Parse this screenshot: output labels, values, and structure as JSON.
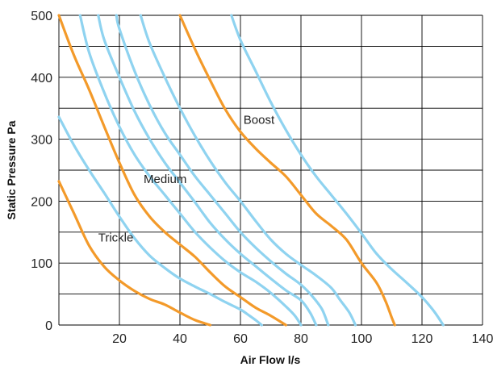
{
  "chart_data": {
    "type": "line",
    "xlabel": "Air Flow l/s",
    "ylabel": "Static Pressure Pa",
    "xlim": [
      0,
      140
    ],
    "ylim": [
      0,
      500
    ],
    "x_ticks": [
      "20",
      "40",
      "60",
      "80",
      "100",
      "120",
      "140"
    ],
    "y_ticks": [
      "0",
      "100",
      "200",
      "300",
      "400",
      "500"
    ],
    "grid": true,
    "colors": {
      "setting_curve": "#f39a2a",
      "fan_curve": "#8fd3f0"
    },
    "annotations": [
      {
        "text": "Boost",
        "x": 61,
        "y": 325
      },
      {
        "text": "Medium",
        "x": 28,
        "y": 229
      },
      {
        "text": "Trickle",
        "x": 13,
        "y": 135
      }
    ],
    "series": [
      {
        "group": "setting",
        "points": [
          [
            0,
            232
          ],
          [
            5,
            180
          ],
          [
            10,
            128
          ],
          [
            15,
            94
          ],
          [
            20,
            72
          ],
          [
            25,
            55
          ],
          [
            30,
            42
          ],
          [
            35,
            33
          ],
          [
            40,
            20
          ],
          [
            45,
            8
          ],
          [
            50,
            0
          ]
        ]
      },
      {
        "group": "setting",
        "points": [
          [
            0,
            500
          ],
          [
            5,
            435
          ],
          [
            10,
            380
          ],
          [
            15,
            320
          ],
          [
            20,
            262
          ],
          [
            25,
            210
          ],
          [
            30,
            175
          ],
          [
            35,
            150
          ],
          [
            40,
            130
          ],
          [
            45,
            110
          ],
          [
            50,
            85
          ],
          [
            55,
            62
          ],
          [
            60,
            45
          ],
          [
            65,
            28
          ],
          [
            70,
            15
          ],
          [
            75,
            0
          ]
        ]
      },
      {
        "group": "setting",
        "points": [
          [
            40,
            500
          ],
          [
            45,
            445
          ],
          [
            50,
            395
          ],
          [
            55,
            348
          ],
          [
            60,
            312
          ],
          [
            65,
            285
          ],
          [
            70,
            262
          ],
          [
            75,
            240
          ],
          [
            80,
            210
          ],
          [
            85,
            180
          ],
          [
            90,
            160
          ],
          [
            95,
            138
          ],
          [
            100,
            100
          ],
          [
            105,
            68
          ],
          [
            108,
            38
          ],
          [
            110,
            12
          ],
          [
            111,
            0
          ]
        ]
      },
      {
        "group": "fan",
        "points": [
          [
            0,
            336
          ],
          [
            5,
            290
          ],
          [
            10,
            250
          ],
          [
            15,
            213
          ],
          [
            20,
            175
          ],
          [
            25,
            140
          ],
          [
            30,
            112
          ],
          [
            35,
            92
          ],
          [
            40,
            75
          ],
          [
            45,
            62
          ],
          [
            50,
            50
          ],
          [
            55,
            37
          ],
          [
            60,
            25
          ],
          [
            63,
            15
          ],
          [
            65,
            8
          ],
          [
            67,
            0
          ]
        ]
      },
      {
        "group": "fan",
        "points": [
          [
            7,
            500
          ],
          [
            10,
            440
          ],
          [
            15,
            375
          ],
          [
            20,
            320
          ],
          [
            25,
            275
          ],
          [
            30,
            240
          ],
          [
            35,
            210
          ],
          [
            40,
            180
          ],
          [
            45,
            150
          ],
          [
            50,
            125
          ],
          [
            55,
            103
          ],
          [
            60,
            85
          ],
          [
            65,
            70
          ],
          [
            70,
            52
          ],
          [
            75,
            30
          ],
          [
            78,
            15
          ],
          [
            80,
            0
          ]
        ]
      },
      {
        "group": "fan",
        "points": [
          [
            13,
            500
          ],
          [
            15,
            460
          ],
          [
            20,
            400
          ],
          [
            25,
            345
          ],
          [
            30,
            300
          ],
          [
            35,
            262
          ],
          [
            40,
            230
          ],
          [
            45,
            198
          ],
          [
            50,
            165
          ],
          [
            55,
            138
          ],
          [
            60,
            115
          ],
          [
            65,
            95
          ],
          [
            70,
            75
          ],
          [
            75,
            56
          ],
          [
            80,
            40
          ],
          [
            83,
            20
          ],
          [
            85,
            0
          ]
        ]
      },
      {
        "group": "fan",
        "points": [
          [
            19,
            500
          ],
          [
            20,
            478
          ],
          [
            25,
            410
          ],
          [
            30,
            355
          ],
          [
            35,
            310
          ],
          [
            40,
            275
          ],
          [
            45,
            240
          ],
          [
            50,
            210
          ],
          [
            55,
            180
          ],
          [
            60,
            150
          ],
          [
            65,
            125
          ],
          [
            70,
            103
          ],
          [
            75,
            83
          ],
          [
            80,
            65
          ],
          [
            84,
            45
          ],
          [
            87,
            25
          ],
          [
            89,
            0
          ]
        ]
      },
      {
        "group": "fan",
        "points": [
          [
            27,
            500
          ],
          [
            30,
            455
          ],
          [
            35,
            400
          ],
          [
            40,
            350
          ],
          [
            45,
            305
          ],
          [
            50,
            265
          ],
          [
            55,
            230
          ],
          [
            60,
            200
          ],
          [
            65,
            168
          ],
          [
            70,
            138
          ],
          [
            75,
            115
          ],
          [
            80,
            97
          ],
          [
            85,
            80
          ],
          [
            90,
            60
          ],
          [
            93,
            40
          ],
          [
            96,
            20
          ],
          [
            98,
            0
          ]
        ]
      },
      {
        "group": "fan",
        "points": [
          [
            57,
            500
          ],
          [
            60,
            460
          ],
          [
            65,
            410
          ],
          [
            70,
            360
          ],
          [
            75,
            315
          ],
          [
            80,
            275
          ],
          [
            85,
            240
          ],
          [
            90,
            210
          ],
          [
            95,
            180
          ],
          [
            100,
            148
          ],
          [
            105,
            115
          ],
          [
            110,
            90
          ],
          [
            115,
            68
          ],
          [
            120,
            45
          ],
          [
            124,
            22
          ],
          [
            127,
            0
          ]
        ]
      }
    ]
  }
}
